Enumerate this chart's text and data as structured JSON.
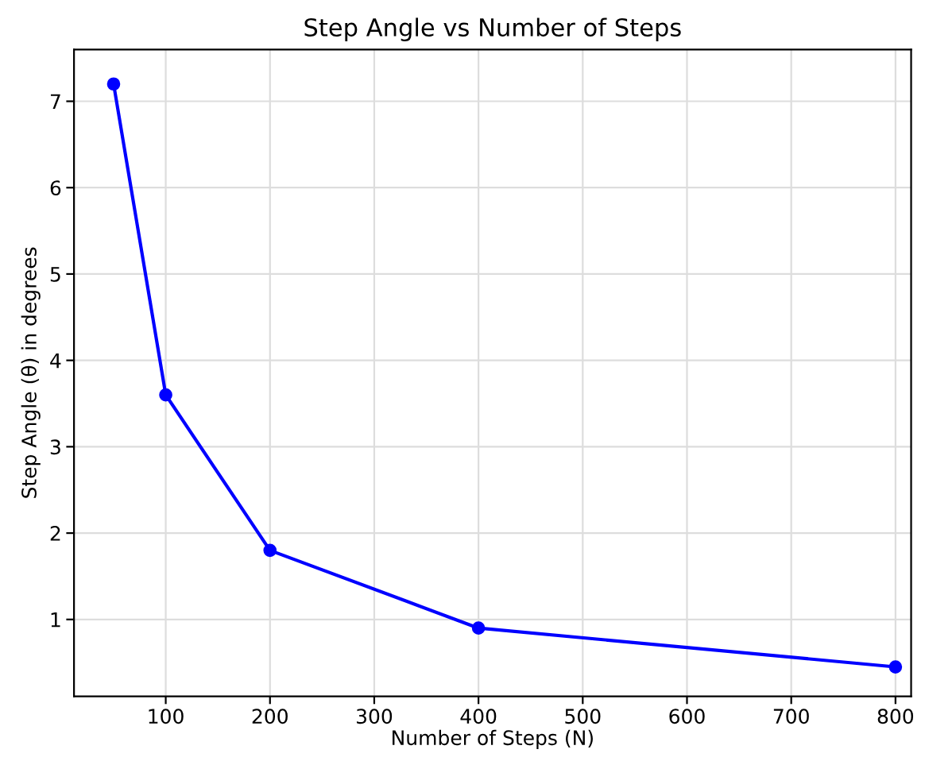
{
  "chart_data": {
    "type": "line",
    "title": "Step Angle vs Number of Steps",
    "xlabel": "Number of Steps (N)",
    "ylabel": "Step Angle (θ) in degrees",
    "x": [
      50,
      100,
      200,
      400,
      800
    ],
    "series": [
      {
        "color": "#0000ff",
        "values": [
          7.2,
          3.6,
          1.8,
          0.9,
          0.45
        ]
      }
    ],
    "xlim": [
      12,
      815
    ],
    "xticks": [
      100,
      200,
      300,
      400,
      500,
      600,
      700,
      800
    ],
    "ylim": [
      0.11,
      7.6
    ],
    "yticks": [
      1,
      2,
      3,
      4,
      5,
      6,
      7
    ],
    "grid": true,
    "marker": "circle",
    "line_style": "solid"
  }
}
